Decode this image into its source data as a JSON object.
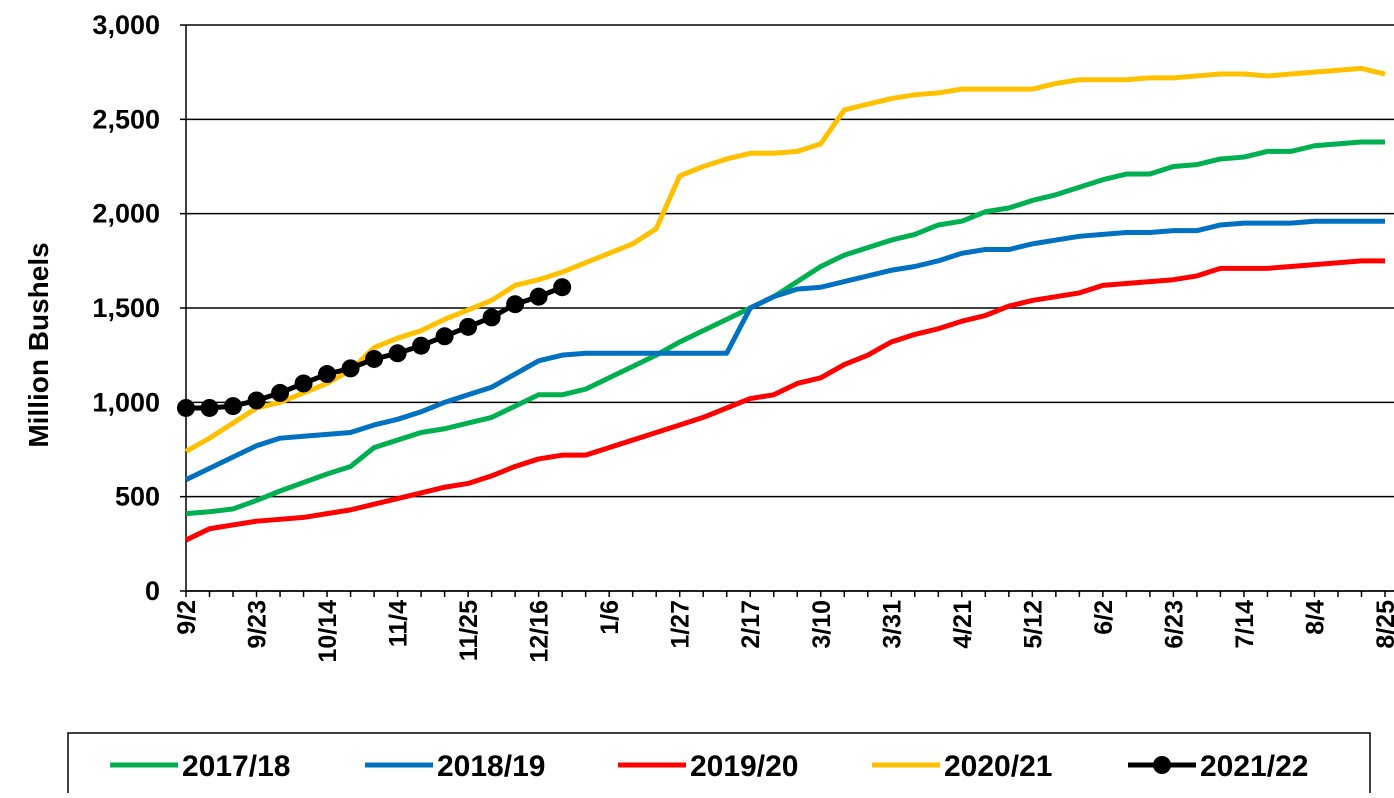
{
  "chart_data": {
    "type": "line",
    "y_axis_label": "Million Bushels",
    "categories": [
      "9/2",
      null,
      null,
      "9/23",
      null,
      null,
      "10/14",
      null,
      null,
      "11/4",
      null,
      null,
      "11/25",
      null,
      null,
      "12/16",
      null,
      null,
      "1/6",
      null,
      null,
      "1/27",
      null,
      null,
      "2/17",
      null,
      null,
      "3/10",
      null,
      null,
      "3/31",
      null,
      null,
      "4/21",
      null,
      null,
      "5/12",
      null,
      null,
      "6/2",
      null,
      null,
      "6/23",
      null,
      null,
      "7/14",
      null,
      null,
      "8/4",
      null,
      null,
      "8/25"
    ],
    "ylim": [
      0,
      3000
    ],
    "yticks": [
      0,
      500,
      {
        "value": 1000,
        "label": "1,000"
      },
      {
        "value": 1500,
        "label": "1,500"
      },
      {
        "value": 2000,
        "label": "2,000"
      },
      {
        "value": 2500,
        "label": "2,500"
      },
      {
        "value": 3000,
        "label": "3,000"
      }
    ],
    "grid": true,
    "legend": "bottom",
    "series": [
      {
        "name": "2017/18",
        "color": "#00b050",
        "values": [
          410,
          420,
          435,
          480,
          530,
          575,
          620,
          660,
          760,
          800,
          840,
          860,
          890,
          920,
          980,
          1040,
          1040,
          1070,
          1130,
          1190,
          1250,
          1320,
          1380,
          1440,
          1500,
          1560,
          1640,
          1720,
          1780,
          1820,
          1860,
          1890,
          1940,
          1960,
          2010,
          2030,
          2070,
          2100,
          2140,
          2180,
          2210,
          2210,
          2250,
          2260,
          2290,
          2300,
          2330,
          2330,
          2360,
          2370,
          2380,
          2380
        ]
      },
      {
        "name": "2018/19",
        "color": "#0070c0",
        "values": [
          590,
          650,
          710,
          770,
          810,
          820,
          830,
          840,
          880,
          910,
          950,
          1000,
          1040,
          1080,
          1150,
          1220,
          1250,
          1260,
          1260,
          1260,
          1260,
          1260,
          1260,
          1260,
          1500,
          1560,
          1600,
          1610,
          1640,
          1670,
          1700,
          1720,
          1750,
          1790,
          1810,
          1810,
          1840,
          1860,
          1880,
          1890,
          1900,
          1900,
          1910,
          1910,
          1940,
          1950,
          1950,
          1950,
          1960,
          1960,
          1960,
          1960
        ]
      },
      {
        "name": "2019/20",
        "color": "#ff0000",
        "values": [
          270,
          330,
          350,
          370,
          380,
          390,
          410,
          430,
          460,
          490,
          520,
          550,
          570,
          610,
          660,
          700,
          720,
          720,
          760,
          800,
          840,
          880,
          920,
          970,
          1020,
          1040,
          1100,
          1130,
          1200,
          1250,
          1320,
          1360,
          1390,
          1430,
          1460,
          1510,
          1540,
          1560,
          1580,
          1620,
          1630,
          1640,
          1650,
          1670,
          1710,
          1710,
          1710,
          1720,
          1730,
          1740,
          1750,
          1750
        ]
      },
      {
        "name": "2020/21",
        "color": "#ffc000",
        "values": [
          740,
          810,
          890,
          970,
          1000,
          1050,
          1100,
          1170,
          1290,
          1340,
          1380,
          1440,
          1490,
          1540,
          1620,
          1650,
          1690,
          1740,
          1790,
          1840,
          1920,
          2200,
          2250,
          2290,
          2320,
          2320,
          2330,
          2370,
          2550,
          2580,
          2610,
          2630,
          2640,
          2660,
          2660,
          2660,
          2660,
          2690,
          2710,
          2710,
          2710,
          2720,
          2720,
          2730,
          2740,
          2740,
          2730,
          2740,
          2750,
          2760,
          2770,
          2740
        ]
      },
      {
        "name": "2021/22",
        "color": "#000000",
        "markers": true,
        "values": [
          970,
          970,
          980,
          1010,
          1050,
          1100,
          1150,
          1180,
          1230,
          1260,
          1300,
          1350,
          1400,
          1450,
          1520,
          1560,
          1610,
          null,
          null,
          null,
          null,
          null,
          null,
          null,
          null,
          null,
          null,
          null,
          null,
          null,
          null,
          null,
          null,
          null,
          null,
          null,
          null,
          null,
          null,
          null,
          null,
          null,
          null,
          null,
          null,
          null,
          null,
          null,
          null,
          null,
          null,
          null
        ]
      }
    ]
  }
}
